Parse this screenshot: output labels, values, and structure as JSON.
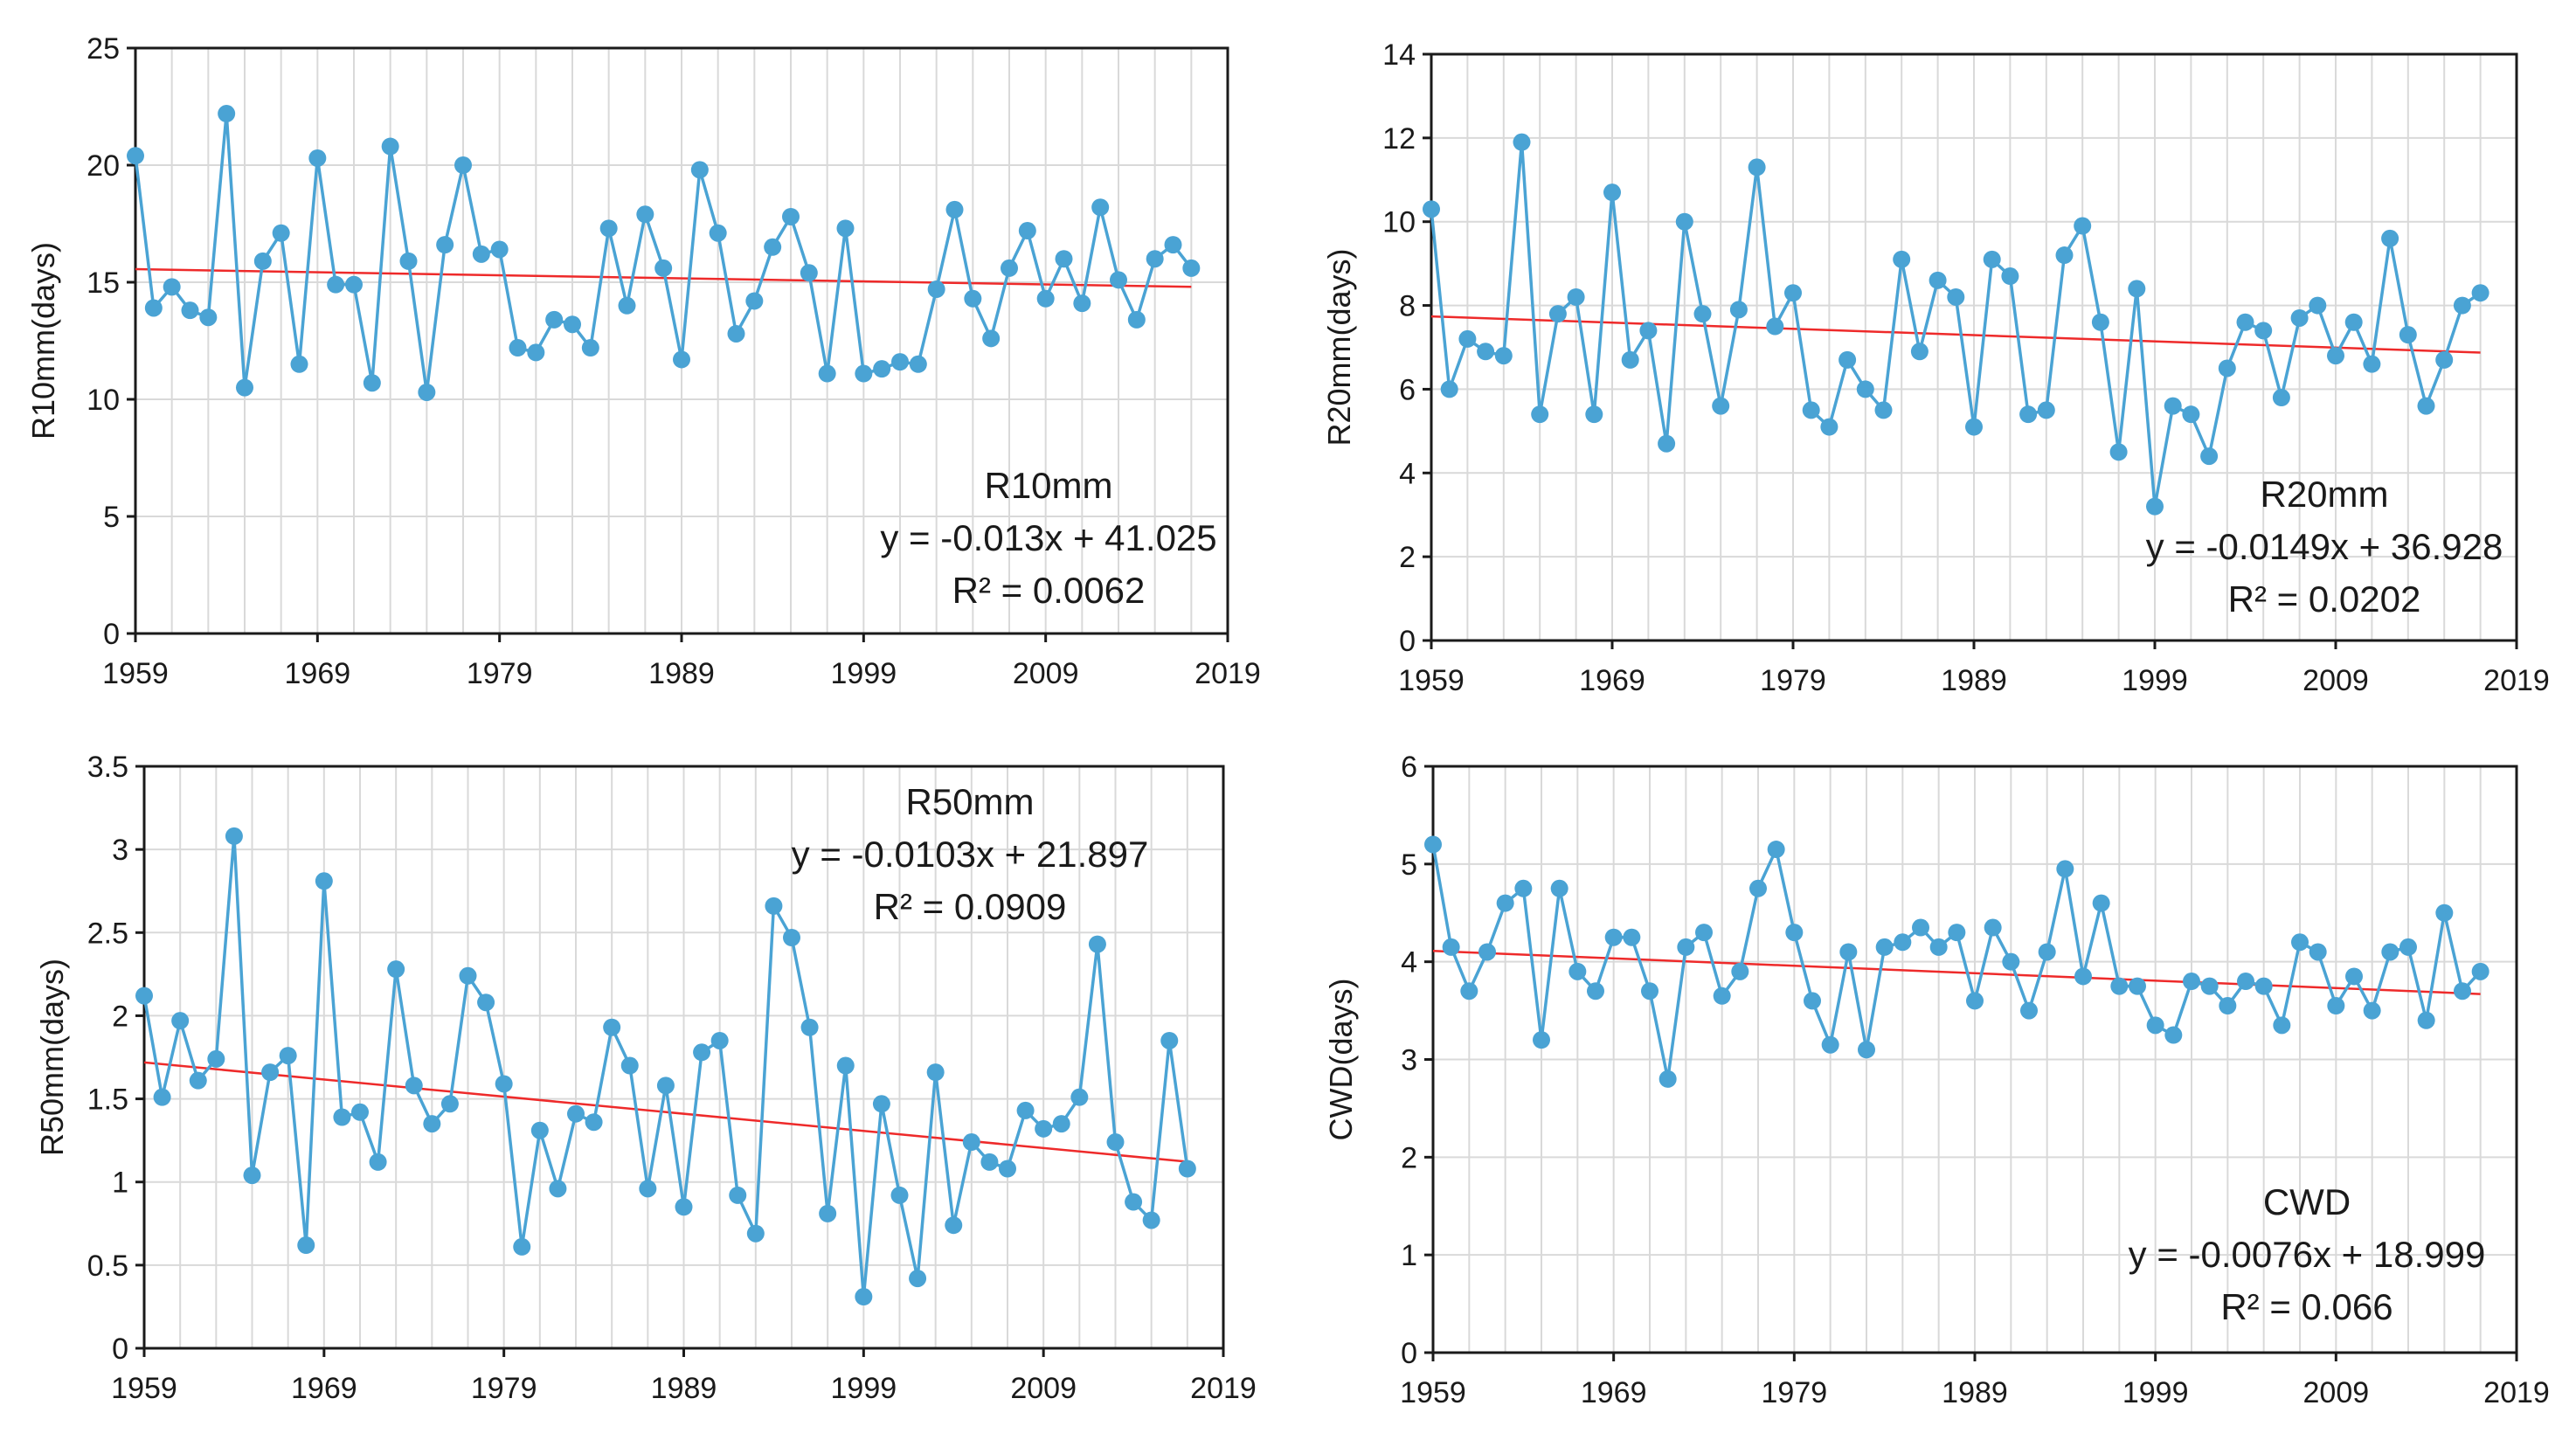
{
  "colors": {
    "series": "#4aa3d4",
    "trend": "#ee2a2a",
    "grid": "#d9d9d9",
    "axis": "#1a1a1a"
  },
  "chart_data": [
    {
      "type": "line",
      "name": "R10mm",
      "ylabel": "R10mm(days)",
      "xlim": [
        1959,
        2019
      ],
      "xticks": [
        1959,
        1969,
        1979,
        1989,
        1999,
        2009,
        2019
      ],
      "ylim": [
        0,
        25
      ],
      "yticks": [
        0,
        5,
        10,
        15,
        20,
        25
      ],
      "x_start": 1959,
      "values": [
        20.4,
        13.9,
        14.8,
        13.8,
        13.5,
        22.2,
        10.5,
        15.9,
        17.1,
        11.5,
        20.3,
        14.9,
        14.9,
        10.7,
        20.8,
        15.9,
        10.3,
        16.6,
        20.0,
        16.2,
        16.4,
        12.2,
        12.0,
        13.4,
        13.2,
        12.2,
        17.3,
        14.0,
        17.9,
        15.6,
        11.7,
        19.8,
        17.1,
        12.8,
        14.2,
        16.5,
        17.8,
        15.4,
        11.1,
        17.3,
        11.1,
        11.3,
        11.6,
        11.5,
        14.7,
        18.1,
        14.3,
        12.6,
        15.6,
        17.2,
        14.3,
        16.0,
        14.1,
        18.2,
        15.1,
        13.4,
        16.0,
        16.6,
        15.6
      ],
      "trend": {
        "slope": -0.013,
        "intercept": 41.025
      },
      "annotation": {
        "title": "R10mm",
        "equation": "y = -0.013x + 41.025",
        "r2": "R² = 0.0062"
      }
    },
    {
      "type": "line",
      "name": "R20mm",
      "ylabel": "R20mm(days)",
      "xlim": [
        1959,
        2019
      ],
      "xticks": [
        1959,
        1969,
        1979,
        1989,
        1999,
        2009,
        2019
      ],
      "ylim": [
        0,
        14
      ],
      "yticks": [
        0,
        2,
        4,
        6,
        8,
        10,
        12,
        14
      ],
      "x_start": 1959,
      "values": [
        10.3,
        6.0,
        7.2,
        6.9,
        6.8,
        11.9,
        5.4,
        7.8,
        8.2,
        5.4,
        10.7,
        6.7,
        7.4,
        4.7,
        10.0,
        7.8,
        5.6,
        7.9,
        11.3,
        7.5,
        8.3,
        5.5,
        5.1,
        6.7,
        6.0,
        5.5,
        9.1,
        6.9,
        8.6,
        8.2,
        5.1,
        9.1,
        8.7,
        5.4,
        5.5,
        9.2,
        9.9,
        7.6,
        4.5,
        8.4,
        3.2,
        5.6,
        5.4,
        4.4,
        6.5,
        7.6,
        7.4,
        5.8,
        7.7,
        8.0,
        6.8,
        7.6,
        6.6,
        9.6,
        7.3,
        5.6,
        6.7,
        8.0,
        8.3
      ],
      "trend": {
        "slope": -0.0149,
        "intercept": 36.928
      },
      "annotation": {
        "title": "R20mm",
        "equation": "y = -0.0149x + 36.928",
        "r2": "R² = 0.0202"
      }
    },
    {
      "type": "line",
      "name": "R50mm",
      "ylabel": "R50mm(days)",
      "xlim": [
        1959,
        2019
      ],
      "xticks": [
        1959,
        1969,
        1979,
        1989,
        1999,
        2009,
        2019
      ],
      "ylim": [
        0,
        3.5
      ],
      "yticks": [
        0,
        0.5,
        1,
        1.5,
        2,
        2.5,
        3,
        3.5
      ],
      "x_start": 1959,
      "values": [
        2.12,
        1.51,
        1.97,
        1.61,
        1.74,
        3.08,
        1.04,
        1.66,
        1.76,
        0.62,
        2.81,
        1.39,
        1.42,
        1.12,
        2.28,
        1.58,
        1.35,
        1.47,
        2.24,
        2.08,
        1.59,
        0.61,
        1.31,
        0.96,
        1.41,
        1.36,
        1.93,
        1.7,
        0.96,
        1.58,
        0.85,
        1.78,
        1.85,
        0.92,
        0.69,
        2.66,
        2.47,
        1.93,
        0.81,
        1.7,
        0.31,
        1.47,
        0.92,
        0.42,
        1.66,
        0.74,
        1.24,
        1.12,
        1.08,
        1.43,
        1.32,
        1.35,
        1.51,
        2.43,
        1.24,
        0.88,
        0.77,
        1.85,
        1.08
      ],
      "trend": {
        "slope": -0.0103,
        "intercept": 21.897
      },
      "annotation": {
        "title": "R50mm",
        "equation": "y = -0.0103x + 21.897",
        "r2": "R² = 0.0909"
      }
    },
    {
      "type": "line",
      "name": "CWD",
      "ylabel": "CWD(days)",
      "xlim": [
        1959,
        2019
      ],
      "xticks": [
        1959,
        1969,
        1979,
        1989,
        1999,
        2009,
        2019
      ],
      "ylim": [
        0,
        6
      ],
      "yticks": [
        0,
        1,
        2,
        3,
        4,
        5,
        6
      ],
      "x_start": 1959,
      "values": [
        5.2,
        4.15,
        3.7,
        4.1,
        4.6,
        4.75,
        3.2,
        4.75,
        3.9,
        3.7,
        4.25,
        4.25,
        3.7,
        2.8,
        4.15,
        4.3,
        3.65,
        3.9,
        4.75,
        5.15,
        4.3,
        3.6,
        3.15,
        4.1,
        3.1,
        4.15,
        4.2,
        4.35,
        4.15,
        4.3,
        3.6,
        4.35,
        4.0,
        3.5,
        4.1,
        4.95,
        3.85,
        4.6,
        3.75,
        3.75,
        3.35,
        3.25,
        3.8,
        3.75,
        3.55,
        3.8,
        3.75,
        3.35,
        4.2,
        4.1,
        3.55,
        3.85,
        3.5,
        4.1,
        4.15,
        3.4,
        4.5,
        3.7,
        3.9
      ],
      "trend": {
        "slope": -0.0076,
        "intercept": 18.999
      },
      "annotation": {
        "title": "CWD",
        "equation": "y = -0.0076x + 18.999",
        "r2": "R² = 0.066"
      }
    }
  ]
}
